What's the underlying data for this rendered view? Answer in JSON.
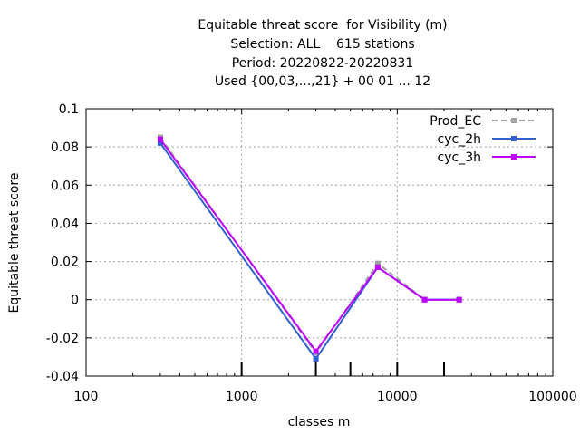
{
  "chart_data": {
    "type": "line",
    "title_lines": [
      "Equitable threat score  for Visibility (m)",
      "Selection: ALL    615 stations",
      "Period: 20220822-20220831",
      "Used {00,03,...,21} + 00 01 ... 12"
    ],
    "xlabel": "classes m",
    "ylabel": "Equitable threat score",
    "x_scale": "log",
    "xlim": [
      100,
      100000
    ],
    "ylim": [
      -0.04,
      0.1
    ],
    "x_ticks": [
      100,
      1000,
      10000,
      100000
    ],
    "x_tick_labels": [
      "100",
      "1000",
      "10000",
      "100000"
    ],
    "y_ticks": [
      -0.04,
      -0.02,
      0,
      0.02,
      0.04,
      0.06,
      0.08,
      0.1
    ],
    "y_tick_labels": [
      "-0.04",
      "-0.02",
      "0",
      "0.02",
      "0.04",
      "0.06",
      "0.08",
      "0.1"
    ],
    "grid": true,
    "legend_position": "top-right",
    "class_markers": [
      1000,
      3000,
      5000,
      10000,
      20000
    ],
    "x": [
      300,
      3000,
      7500,
      15000,
      25000
    ],
    "series": [
      {
        "name": "Prod_EC",
        "color": "#a0a0a0",
        "dashed": true,
        "values": [
          0.085,
          -0.028,
          0.019,
          0.0,
          0.0
        ]
      },
      {
        "name": "cyc_2h",
        "color": "#3060d0",
        "dashed": false,
        "values": [
          0.082,
          -0.031,
          0.017,
          0.0,
          0.0
        ]
      },
      {
        "name": "cyc_3h",
        "color": "#c000ff",
        "dashed": false,
        "values": [
          0.084,
          -0.027,
          0.017,
          0.0,
          0.0
        ]
      }
    ]
  }
}
